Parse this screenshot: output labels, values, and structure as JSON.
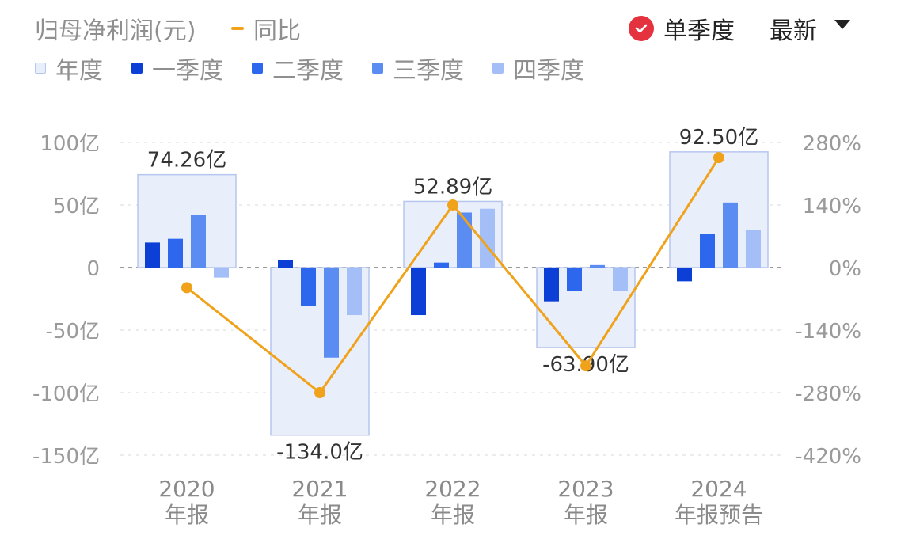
{
  "header": {
    "title": "归母净利润(元)",
    "yoy_label": "同比",
    "single_season_label": "单季度",
    "latest_label": "最新"
  },
  "legend": {
    "annual": "年度",
    "q1": "一季度",
    "q2": "二季度",
    "q3": "三季度",
    "q4": "四季度"
  },
  "colors": {
    "annual_fill": "#e9eefb",
    "annual_stroke": "#b7c6ee",
    "q1": "#0b3fd6",
    "q2": "#2d67ee",
    "q3": "#5b8cf2",
    "q4": "#a4bff7",
    "yoy_line": "#f0a21b",
    "check": "#e5323f"
  },
  "chart_data": {
    "type": "bar",
    "categories": [
      "2020\n年报",
      "2021\n年报",
      "2022\n年报",
      "2023\n年报",
      "2024\n年报预告"
    ],
    "annual": {
      "values": [
        74.26,
        -134.0,
        52.89,
        -63.9,
        92.5
      ],
      "labels": [
        "74.26亿",
        "-134.0亿",
        "52.89亿",
        "-63.90亿",
        "92.50亿"
      ]
    },
    "series": [
      {
        "name": "一季度",
        "values": [
          20,
          6,
          -38,
          -27,
          -11
        ]
      },
      {
        "name": "二季度",
        "values": [
          23,
          -31,
          4,
          -19,
          27
        ]
      },
      {
        "name": "三季度",
        "values": [
          42,
          -72,
          44,
          2,
          52
        ]
      },
      {
        "name": "四季度",
        "values": [
          -8,
          -38,
          47,
          -19,
          30
        ]
      }
    ],
    "yoy": {
      "name": "同比",
      "values": [
        -45,
        -280,
        140,
        -220,
        246
      ]
    },
    "y_left": {
      "ticks": [
        100,
        50,
        0,
        -50,
        -100,
        -150
      ],
      "tick_labels": [
        "100亿",
        "50亿",
        "0",
        "-50亿",
        "-100亿",
        "-150亿"
      ],
      "ylim": [
        -150,
        100
      ]
    },
    "y_right": {
      "ticks": [
        280,
        140,
        0,
        -140,
        -280,
        -420
      ],
      "tick_labels": [
        "280%",
        "140%",
        "0%",
        "-140%",
        "-280%",
        "-420%"
      ],
      "ylim": [
        -420,
        280
      ]
    },
    "grid": true,
    "legend_position": "top-left"
  }
}
